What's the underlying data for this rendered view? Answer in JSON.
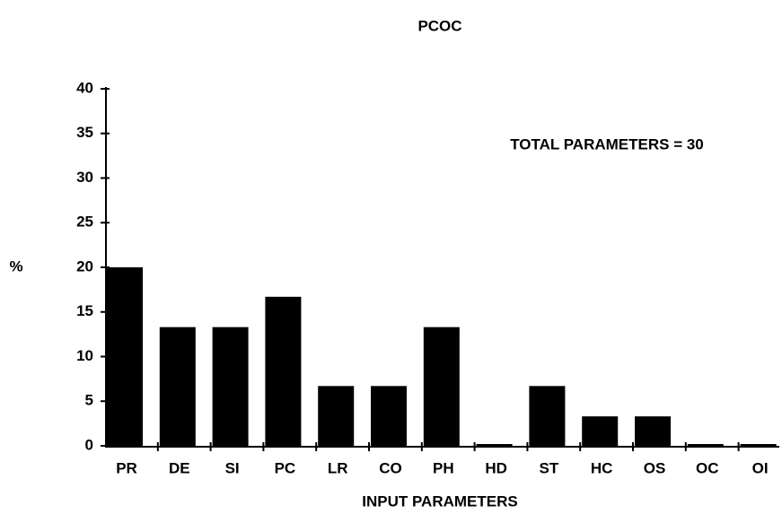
{
  "chart_data": {
    "type": "bar",
    "title": "PCOC",
    "annotation": "TOTAL PARAMETERS = 30",
    "xlabel": "INPUT PARAMETERS",
    "ylabel": "%",
    "categories": [
      "PR",
      "DE",
      "SI",
      "PC",
      "LR",
      "CO",
      "PH",
      "HD",
      "ST",
      "HC",
      "OS",
      "OC",
      "OI"
    ],
    "values": [
      20,
      13.3,
      13.3,
      16.7,
      6.7,
      6.7,
      13.3,
      0,
      6.7,
      3.3,
      3.3,
      0,
      0
    ],
    "color": "#000000",
    "ylim": [
      0,
      40
    ],
    "yticks": [
      0,
      5,
      10,
      15,
      20,
      25,
      30,
      35,
      40
    ],
    "grid": false
  }
}
